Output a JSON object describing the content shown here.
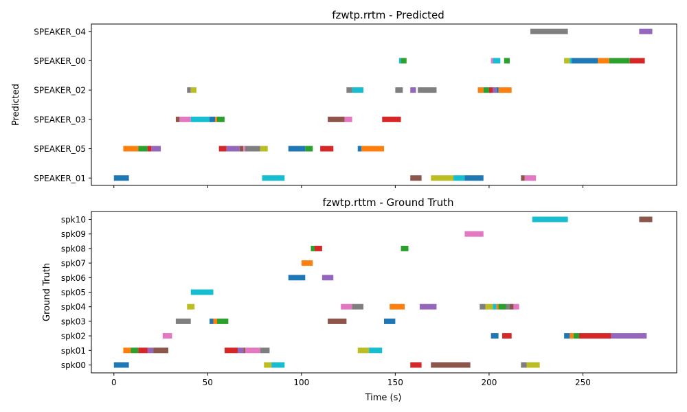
{
  "chart_data": [
    {
      "type": "timeline",
      "title": "fzwtp.rrtm - Predicted",
      "xlabel": "",
      "ylabel": "Predicted",
      "xlim": [
        -12,
        300
      ],
      "xticks": [
        0,
        50,
        100,
        150,
        200,
        250
      ],
      "xtick_labels_visible": false,
      "grid": false,
      "rows": [
        "SPEAKER_04",
        "SPEAKER_00",
        "SPEAKER_02",
        "SPEAKER_03",
        "SPEAKER_05",
        "SPEAKER_01"
      ],
      "segments": [
        {
          "row": "SPEAKER_04",
          "start": 222,
          "end": 242,
          "color": "#7f7f7f"
        },
        {
          "row": "SPEAKER_04",
          "start": 280,
          "end": 287,
          "color": "#9467bd"
        },
        {
          "row": "SPEAKER_00",
          "start": 152,
          "end": 153,
          "color": "#17becf"
        },
        {
          "row": "SPEAKER_00",
          "start": 153,
          "end": 156,
          "color": "#2ca02c"
        },
        {
          "row": "SPEAKER_00",
          "start": 201,
          "end": 202,
          "color": "#e377c2"
        },
        {
          "row": "SPEAKER_00",
          "start": 202,
          "end": 206,
          "color": "#17becf"
        },
        {
          "row": "SPEAKER_00",
          "start": 208,
          "end": 211,
          "color": "#2ca02c"
        },
        {
          "row": "SPEAKER_00",
          "start": 240,
          "end": 243,
          "color": "#bcbd22"
        },
        {
          "row": "SPEAKER_00",
          "start": 243,
          "end": 244,
          "color": "#17becf"
        },
        {
          "row": "SPEAKER_00",
          "start": 244,
          "end": 258,
          "color": "#1f77b4"
        },
        {
          "row": "SPEAKER_00",
          "start": 258,
          "end": 264,
          "color": "#ff7f0e"
        },
        {
          "row": "SPEAKER_00",
          "start": 264,
          "end": 275,
          "color": "#2ca02c"
        },
        {
          "row": "SPEAKER_00",
          "start": 275,
          "end": 283,
          "color": "#d62728"
        },
        {
          "row": "SPEAKER_02",
          "start": 39,
          "end": 41,
          "color": "#7f7f7f"
        },
        {
          "row": "SPEAKER_02",
          "start": 41,
          "end": 44,
          "color": "#bcbd22"
        },
        {
          "row": "SPEAKER_02",
          "start": 124,
          "end": 127,
          "color": "#7f7f7f"
        },
        {
          "row": "SPEAKER_02",
          "start": 127,
          "end": 133,
          "color": "#17becf"
        },
        {
          "row": "SPEAKER_02",
          "start": 150,
          "end": 154,
          "color": "#7f7f7f"
        },
        {
          "row": "SPEAKER_02",
          "start": 158,
          "end": 161,
          "color": "#9467bd"
        },
        {
          "row": "SPEAKER_02",
          "start": 162,
          "end": 172,
          "color": "#7f7f7f"
        },
        {
          "row": "SPEAKER_02",
          "start": 194,
          "end": 197,
          "color": "#ff7f0e"
        },
        {
          "row": "SPEAKER_02",
          "start": 197,
          "end": 200,
          "color": "#2ca02c"
        },
        {
          "row": "SPEAKER_02",
          "start": 200,
          "end": 202,
          "color": "#d62728"
        },
        {
          "row": "SPEAKER_02",
          "start": 202,
          "end": 204,
          "color": "#9467bd"
        },
        {
          "row": "SPEAKER_02",
          "start": 204,
          "end": 205,
          "color": "#1f77b4"
        },
        {
          "row": "SPEAKER_02",
          "start": 205,
          "end": 212,
          "color": "#ff7f0e"
        },
        {
          "row": "SPEAKER_03",
          "start": 33,
          "end": 35,
          "color": "#8c564b"
        },
        {
          "row": "SPEAKER_03",
          "start": 35,
          "end": 41,
          "color": "#e377c2"
        },
        {
          "row": "SPEAKER_03",
          "start": 41,
          "end": 51,
          "color": "#17becf"
        },
        {
          "row": "SPEAKER_03",
          "start": 51,
          "end": 54,
          "color": "#1f77b4"
        },
        {
          "row": "SPEAKER_03",
          "start": 54,
          "end": 55,
          "color": "#ff7f0e"
        },
        {
          "row": "SPEAKER_03",
          "start": 55,
          "end": 59,
          "color": "#2ca02c"
        },
        {
          "row": "SPEAKER_03",
          "start": 114,
          "end": 123,
          "color": "#8c564b"
        },
        {
          "row": "SPEAKER_03",
          "start": 123,
          "end": 127,
          "color": "#e377c2"
        },
        {
          "row": "SPEAKER_03",
          "start": 143,
          "end": 153,
          "color": "#d62728"
        },
        {
          "row": "SPEAKER_05",
          "start": 5,
          "end": 13,
          "color": "#ff7f0e"
        },
        {
          "row": "SPEAKER_05",
          "start": 13,
          "end": 18,
          "color": "#2ca02c"
        },
        {
          "row": "SPEAKER_05",
          "start": 18,
          "end": 20,
          "color": "#d62728"
        },
        {
          "row": "SPEAKER_05",
          "start": 20,
          "end": 25,
          "color": "#9467bd"
        },
        {
          "row": "SPEAKER_05",
          "start": 56,
          "end": 60,
          "color": "#d62728"
        },
        {
          "row": "SPEAKER_05",
          "start": 60,
          "end": 67,
          "color": "#9467bd"
        },
        {
          "row": "SPEAKER_05",
          "start": 67,
          "end": 69,
          "color": "#8c564b"
        },
        {
          "row": "SPEAKER_05",
          "start": 69,
          "end": 70,
          "color": "#e377c2"
        },
        {
          "row": "SPEAKER_05",
          "start": 70,
          "end": 78,
          "color": "#7f7f7f"
        },
        {
          "row": "SPEAKER_05",
          "start": 78,
          "end": 82,
          "color": "#bcbd22"
        },
        {
          "row": "SPEAKER_05",
          "start": 93,
          "end": 102,
          "color": "#1f77b4"
        },
        {
          "row": "SPEAKER_05",
          "start": 102,
          "end": 106,
          "color": "#2ca02c"
        },
        {
          "row": "SPEAKER_05",
          "start": 110,
          "end": 117,
          "color": "#d62728"
        },
        {
          "row": "SPEAKER_05",
          "start": 130,
          "end": 132,
          "color": "#1f77b4"
        },
        {
          "row": "SPEAKER_05",
          "start": 132,
          "end": 144,
          "color": "#ff7f0e"
        },
        {
          "row": "SPEAKER_01",
          "start": 0,
          "end": 8,
          "color": "#1f77b4"
        },
        {
          "row": "SPEAKER_01",
          "start": 79,
          "end": 91,
          "color": "#17becf"
        },
        {
          "row": "SPEAKER_01",
          "start": 158,
          "end": 164,
          "color": "#8c564b"
        },
        {
          "row": "SPEAKER_01",
          "start": 169,
          "end": 181,
          "color": "#bcbd22"
        },
        {
          "row": "SPEAKER_01",
          "start": 181,
          "end": 187,
          "color": "#17becf"
        },
        {
          "row": "SPEAKER_01",
          "start": 187,
          "end": 197,
          "color": "#1f77b4"
        },
        {
          "row": "SPEAKER_01",
          "start": 217,
          "end": 219,
          "color": "#8c564b"
        },
        {
          "row": "SPEAKER_01",
          "start": 219,
          "end": 225,
          "color": "#e377c2"
        }
      ]
    },
    {
      "type": "timeline",
      "title": "fzwtp.rttm - Ground Truth",
      "xlabel": "Time (s)",
      "ylabel": "Ground Truth",
      "xlim": [
        -12,
        300
      ],
      "xticks": [
        0,
        50,
        100,
        150,
        200,
        250
      ],
      "grid": false,
      "rows": [
        "spk10",
        "spk09",
        "spk08",
        "spk07",
        "spk06",
        "spk05",
        "spk04",
        "spk03",
        "spk02",
        "spk01",
        "spk00"
      ],
      "segments": [
        {
          "row": "spk10",
          "start": 223,
          "end": 242,
          "color": "#17becf"
        },
        {
          "row": "spk10",
          "start": 280,
          "end": 287,
          "color": "#8c564b"
        },
        {
          "row": "spk09",
          "start": 187,
          "end": 197,
          "color": "#e377c2"
        },
        {
          "row": "spk08",
          "start": 105,
          "end": 107,
          "color": "#2ca02c"
        },
        {
          "row": "spk08",
          "start": 107,
          "end": 111,
          "color": "#d62728"
        },
        {
          "row": "spk08",
          "start": 153,
          "end": 157,
          "color": "#2ca02c"
        },
        {
          "row": "spk07",
          "start": 100,
          "end": 106,
          "color": "#ff7f0e"
        },
        {
          "row": "spk06",
          "start": 93,
          "end": 102,
          "color": "#1f77b4"
        },
        {
          "row": "spk06",
          "start": 111,
          "end": 117,
          "color": "#9467bd"
        },
        {
          "row": "spk05",
          "start": 41,
          "end": 53,
          "color": "#17becf"
        },
        {
          "row": "spk04",
          "start": 39,
          "end": 43,
          "color": "#bcbd22"
        },
        {
          "row": "spk04",
          "start": 121,
          "end": 127,
          "color": "#e377c2"
        },
        {
          "row": "spk04",
          "start": 127,
          "end": 133,
          "color": "#7f7f7f"
        },
        {
          "row": "spk04",
          "start": 147,
          "end": 155,
          "color": "#ff7f0e"
        },
        {
          "row": "spk04",
          "start": 163,
          "end": 172,
          "color": "#9467bd"
        },
        {
          "row": "spk04",
          "start": 195,
          "end": 198,
          "color": "#7f7f7f"
        },
        {
          "row": "spk04",
          "start": 198,
          "end": 202,
          "color": "#bcbd22"
        },
        {
          "row": "spk04",
          "start": 202,
          "end": 204,
          "color": "#17becf"
        },
        {
          "row": "spk04",
          "start": 204,
          "end": 205,
          "color": "#ff7f0e"
        },
        {
          "row": "spk04",
          "start": 205,
          "end": 209,
          "color": "#2ca02c"
        },
        {
          "row": "spk04",
          "start": 209,
          "end": 211,
          "color": "#7f7f7f"
        },
        {
          "row": "spk04",
          "start": 211,
          "end": 213,
          "color": "#8c564b"
        },
        {
          "row": "spk04",
          "start": 213,
          "end": 216,
          "color": "#e377c2"
        },
        {
          "row": "spk03",
          "start": 33,
          "end": 41,
          "color": "#7f7f7f"
        },
        {
          "row": "spk03",
          "start": 51,
          "end": 53,
          "color": "#1f77b4"
        },
        {
          "row": "spk03",
          "start": 53,
          "end": 55,
          "color": "#ff7f0e"
        },
        {
          "row": "spk03",
          "start": 55,
          "end": 61,
          "color": "#2ca02c"
        },
        {
          "row": "spk03",
          "start": 114,
          "end": 124,
          "color": "#8c564b"
        },
        {
          "row": "spk03",
          "start": 144,
          "end": 150,
          "color": "#1f77b4"
        },
        {
          "row": "spk02",
          "start": 26,
          "end": 31,
          "color": "#e377c2"
        },
        {
          "row": "spk02",
          "start": 201,
          "end": 205,
          "color": "#1f77b4"
        },
        {
          "row": "spk02",
          "start": 207,
          "end": 212,
          "color": "#d62728"
        },
        {
          "row": "spk02",
          "start": 240,
          "end": 243,
          "color": "#1f77b4"
        },
        {
          "row": "spk02",
          "start": 243,
          "end": 245,
          "color": "#ff7f0e"
        },
        {
          "row": "spk02",
          "start": 245,
          "end": 248,
          "color": "#2ca02c"
        },
        {
          "row": "spk02",
          "start": 248,
          "end": 265,
          "color": "#d62728"
        },
        {
          "row": "spk02",
          "start": 265,
          "end": 284,
          "color": "#9467bd"
        },
        {
          "row": "spk01",
          "start": 5,
          "end": 9,
          "color": "#ff7f0e"
        },
        {
          "row": "spk01",
          "start": 9,
          "end": 13,
          "color": "#2ca02c"
        },
        {
          "row": "spk01",
          "start": 13,
          "end": 18,
          "color": "#d62728"
        },
        {
          "row": "spk01",
          "start": 18,
          "end": 21,
          "color": "#9467bd"
        },
        {
          "row": "spk01",
          "start": 21,
          "end": 29,
          "color": "#8c564b"
        },
        {
          "row": "spk01",
          "start": 59,
          "end": 66,
          "color": "#d62728"
        },
        {
          "row": "spk01",
          "start": 66,
          "end": 69,
          "color": "#9467bd"
        },
        {
          "row": "spk01",
          "start": 69,
          "end": 70,
          "color": "#8c564b"
        },
        {
          "row": "spk01",
          "start": 70,
          "end": 78,
          "color": "#e377c2"
        },
        {
          "row": "spk01",
          "start": 78,
          "end": 83,
          "color": "#7f7f7f"
        },
        {
          "row": "spk01",
          "start": 130,
          "end": 136,
          "color": "#bcbd22"
        },
        {
          "row": "spk01",
          "start": 136,
          "end": 143,
          "color": "#17becf"
        },
        {
          "row": "spk00",
          "start": 0,
          "end": 8,
          "color": "#1f77b4"
        },
        {
          "row": "spk00",
          "start": 80,
          "end": 84,
          "color": "#bcbd22"
        },
        {
          "row": "spk00",
          "start": 84,
          "end": 91,
          "color": "#17becf"
        },
        {
          "row": "spk00",
          "start": 158,
          "end": 164,
          "color": "#d62728"
        },
        {
          "row": "spk00",
          "start": 169,
          "end": 190,
          "color": "#8c564b"
        },
        {
          "row": "spk00",
          "start": 217,
          "end": 220,
          "color": "#7f7f7f"
        },
        {
          "row": "spk00",
          "start": 220,
          "end": 227,
          "color": "#bcbd22"
        }
      ]
    }
  ]
}
